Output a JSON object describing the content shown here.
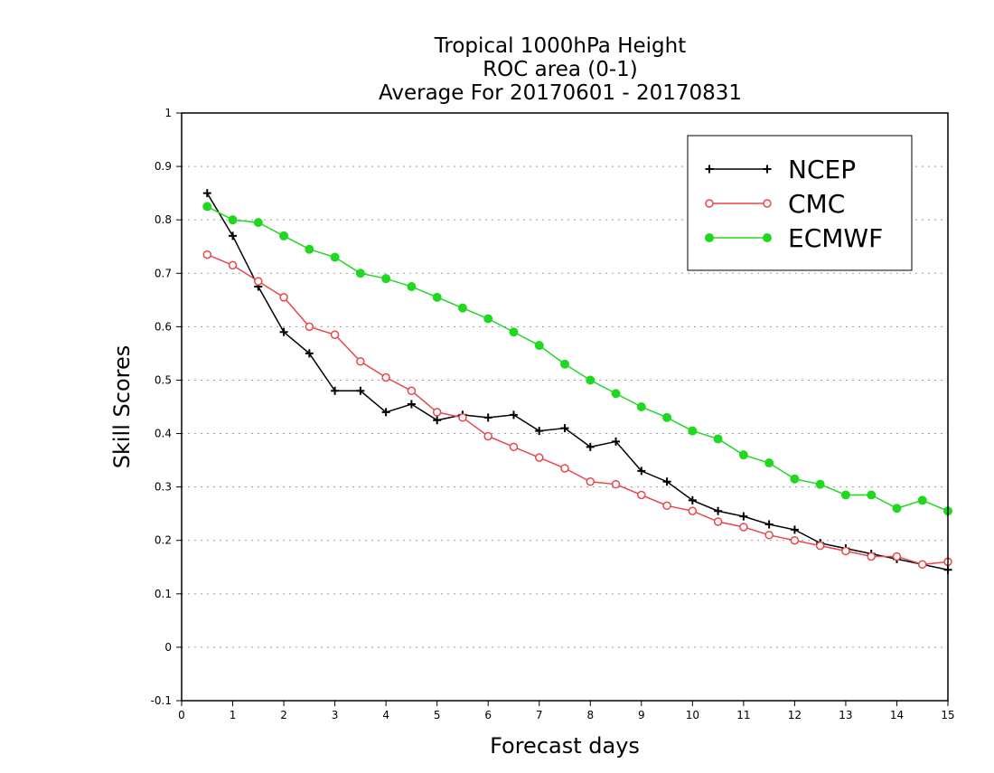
{
  "chart_data": {
    "type": "line",
    "title": [
      "Tropical 1000hPa Height",
      "ROC area (0-1)",
      "Average For 20170601 - 20170831"
    ],
    "xlabel": "Forecast days",
    "ylabel": "Skill Scores",
    "xlim": [
      0,
      15
    ],
    "ylim": [
      -0.1,
      1
    ],
    "xticks": [
      0,
      1,
      2,
      3,
      4,
      5,
      6,
      7,
      8,
      9,
      10,
      11,
      12,
      13,
      14,
      15
    ],
    "yticks": [
      -0.1,
      0,
      0.1,
      0.2,
      0.3,
      0.4,
      0.5,
      0.6,
      0.7,
      0.8,
      0.9,
      1
    ],
    "ytick_labels": [
      "-0.1",
      "0",
      "0.1",
      "0.2",
      "0.3",
      "0.4",
      "0.5",
      "0.6",
      "0.7",
      "0.8",
      "0.9",
      "1"
    ],
    "grid": "horizontal dotted",
    "legend_position": "top-right",
    "x": [
      0.5,
      1,
      1.5,
      2,
      2.5,
      3,
      3.5,
      4,
      4.5,
      5,
      5.5,
      6,
      6.5,
      7,
      7.5,
      8,
      8.5,
      9,
      9.5,
      10,
      10.5,
      11,
      11.5,
      12,
      12.5,
      13,
      13.5,
      14,
      14.5,
      15
    ],
    "series": [
      {
        "name": "NCEP",
        "color": "#000000",
        "marker": "plus",
        "values": [
          0.85,
          0.77,
          0.675,
          0.59,
          0.55,
          0.48,
          0.48,
          0.44,
          0.455,
          0.425,
          0.435,
          0.43,
          0.435,
          0.405,
          0.41,
          0.375,
          0.385,
          0.33,
          0.31,
          0.275,
          0.255,
          0.245,
          0.23,
          0.22,
          0.195,
          0.185,
          0.175,
          0.165,
          0.155,
          0.145
        ]
      },
      {
        "name": "CMC",
        "color": "#e8474a",
        "marker": "open-circle",
        "values": [
          0.735,
          0.715,
          0.685,
          0.655,
          0.6,
          0.585,
          0.535,
          0.505,
          0.48,
          0.44,
          0.43,
          0.395,
          0.375,
          0.355,
          0.335,
          0.31,
          0.305,
          0.285,
          0.265,
          0.255,
          0.235,
          0.225,
          0.21,
          0.2,
          0.19,
          0.18,
          0.17,
          0.17,
          0.155,
          0.16
        ]
      },
      {
        "name": "ECMWF",
        "color": "#21d821",
        "marker": "filled-circle",
        "values": [
          0.825,
          0.8,
          0.795,
          0.77,
          0.745,
          0.73,
          0.7,
          0.69,
          0.675,
          0.655,
          0.635,
          0.615,
          0.59,
          0.565,
          0.53,
          0.5,
          0.475,
          0.45,
          0.43,
          0.405,
          0.39,
          0.36,
          0.345,
          0.315,
          0.305,
          0.285,
          0.285,
          0.26,
          0.275,
          0.255
        ]
      }
    ]
  }
}
